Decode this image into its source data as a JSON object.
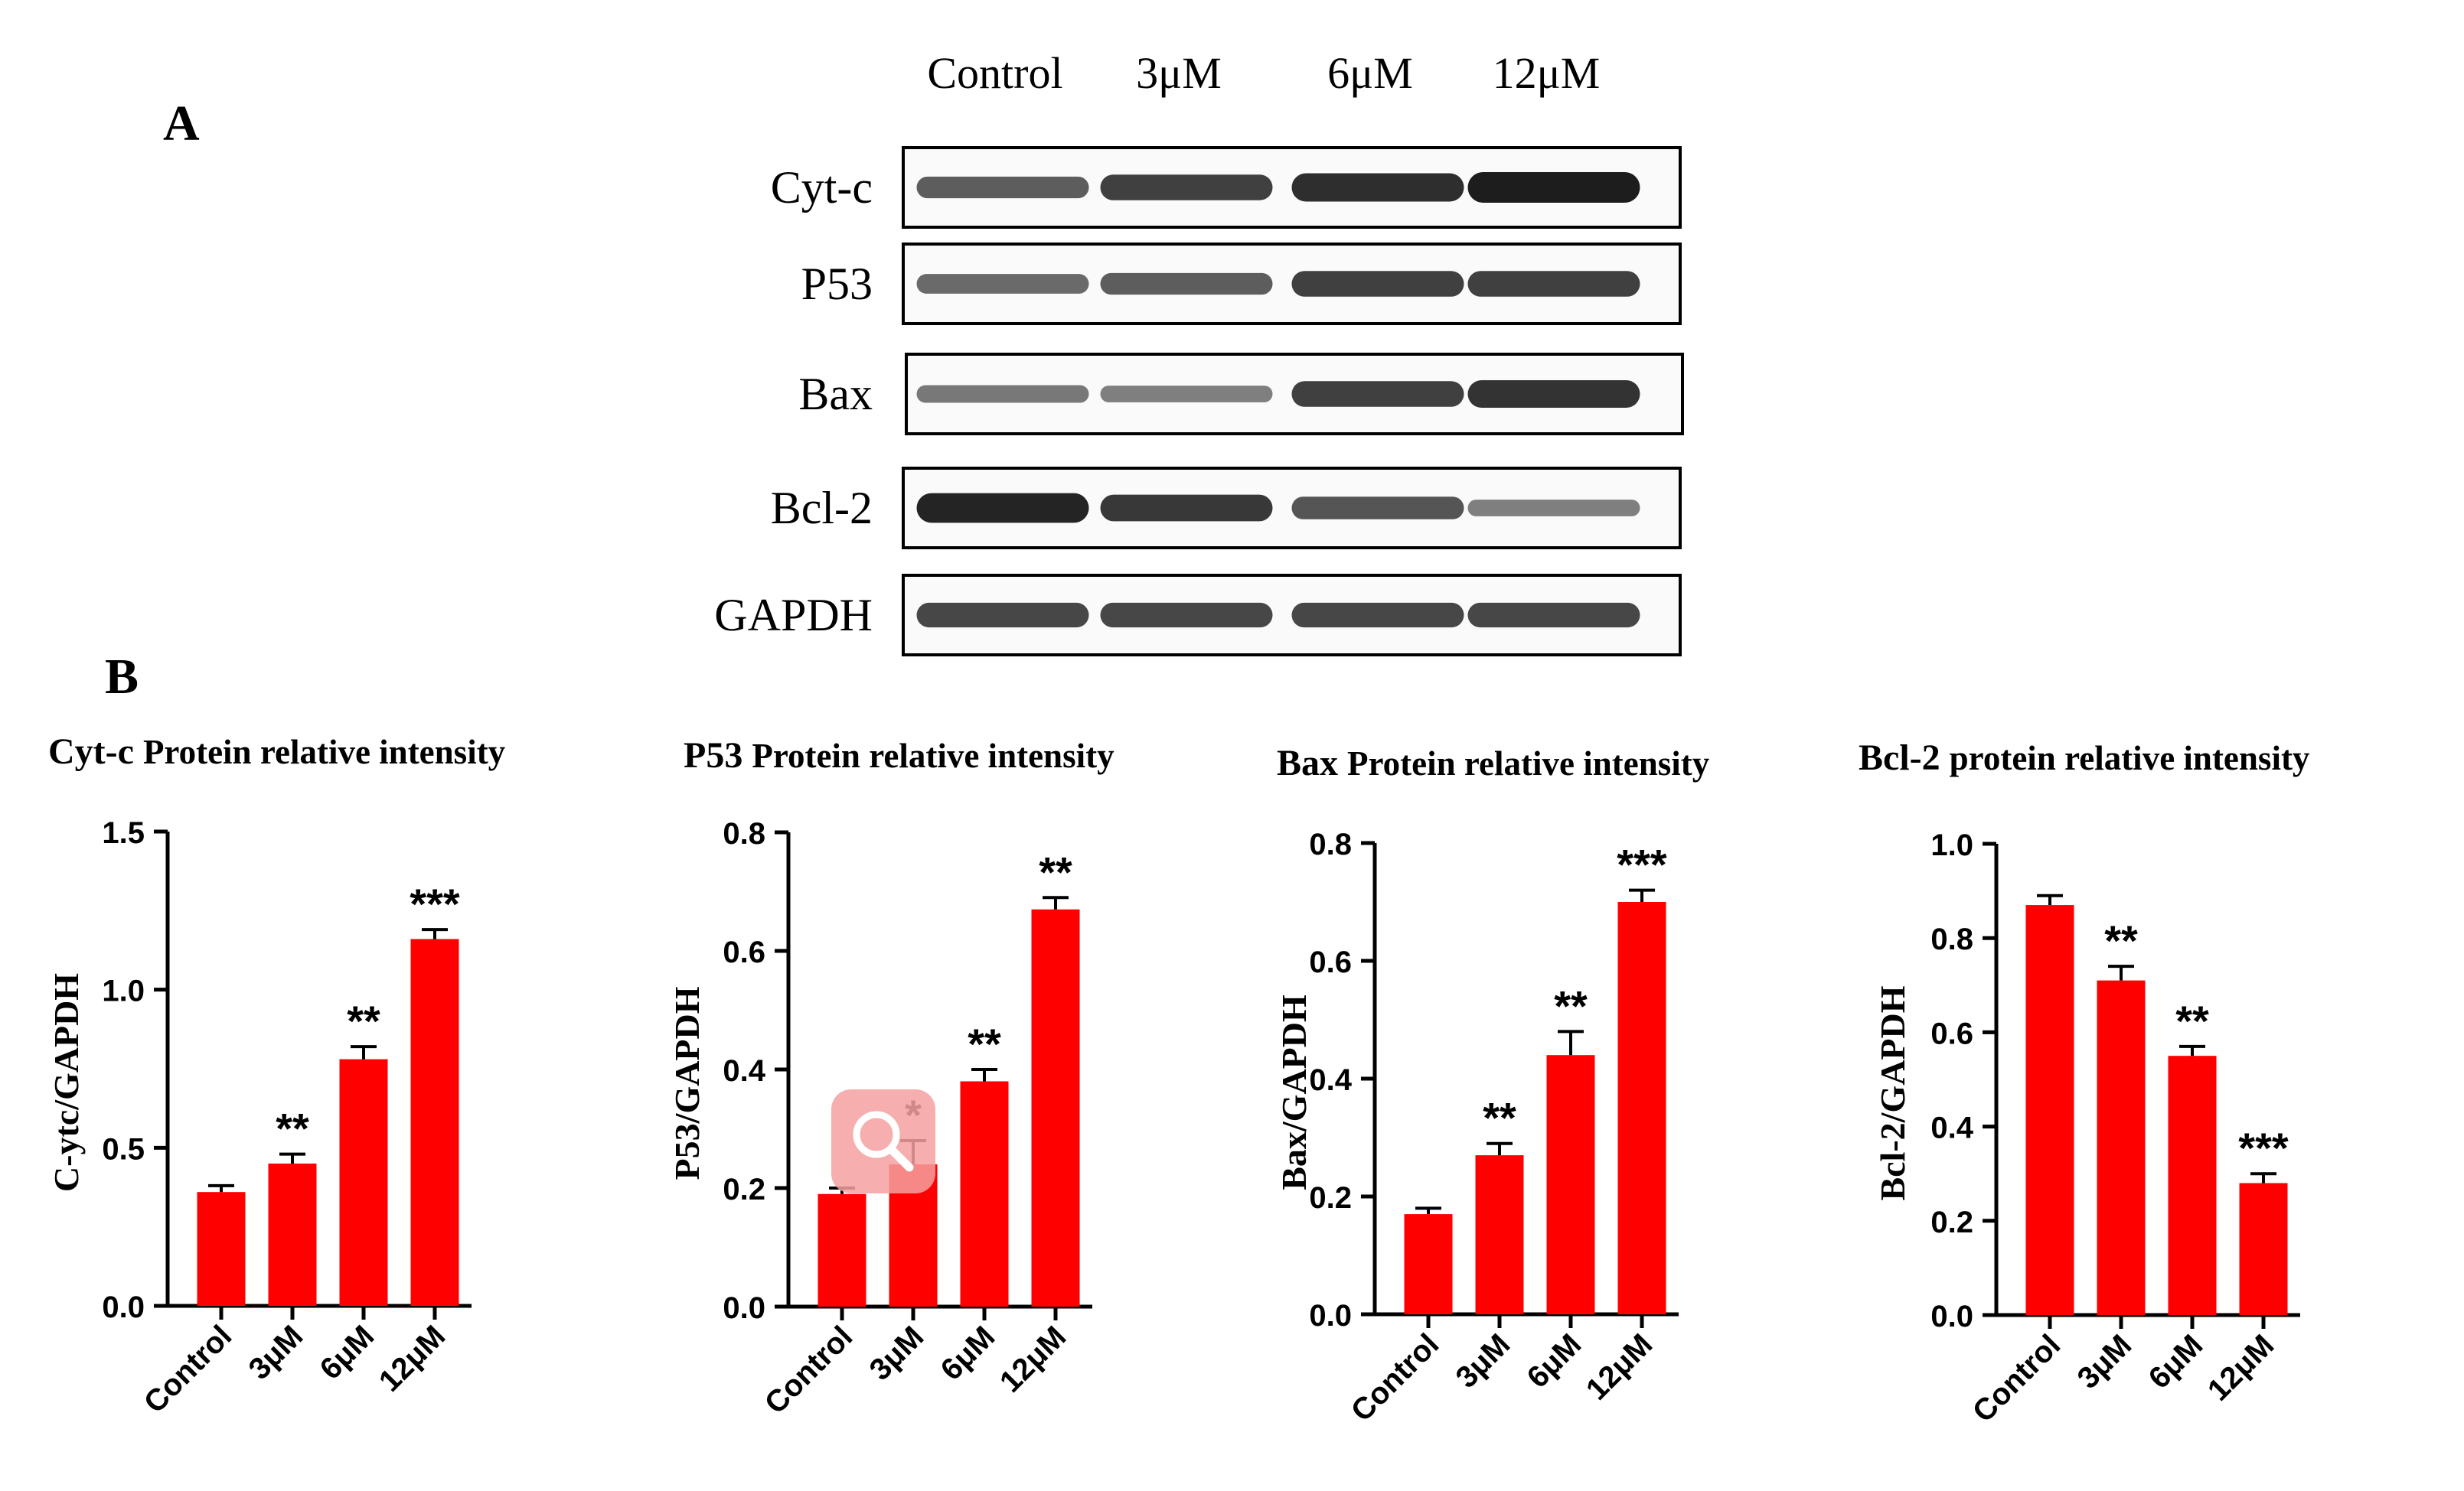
{
  "panel_labels": {
    "a": "A",
    "b": "B"
  },
  "blot": {
    "lanes": [
      "Control",
      "3μM",
      "6μM",
      "12μM"
    ],
    "rows": [
      {
        "label": "Cyt-c",
        "intensity": [
          0.55,
          0.75,
          0.88,
          1.0
        ]
      },
      {
        "label": "P53",
        "intensity": [
          0.45,
          0.55,
          0.75,
          0.75
        ]
      },
      {
        "label": "Bax",
        "intensity": [
          0.35,
          0.3,
          0.75,
          0.85
        ]
      },
      {
        "label": "Bcl-2",
        "intensity": [
          0.95,
          0.8,
          0.6,
          0.3
        ]
      },
      {
        "label": "GAPDH",
        "intensity": [
          0.7,
          0.7,
          0.7,
          0.7
        ]
      }
    ]
  },
  "colors": {
    "bar": "#ff0000",
    "axis": "#000000",
    "band": "#111111"
  },
  "zoom_icon": "magnifier-icon",
  "chart_data": [
    {
      "type": "bar",
      "title_prefix": "Cyt-c",
      "title_rest": "Protein relative intensity",
      "ylabel": "C-ytc/GAPDH",
      "categories": [
        "Control",
        "3μM",
        "6μM",
        "12μM"
      ],
      "values": [
        0.36,
        0.45,
        0.78,
        1.16
      ],
      "errors": [
        0.02,
        0.03,
        0.04,
        0.03
      ],
      "significance": [
        "",
        "**",
        "**",
        "***"
      ],
      "ylim": [
        0,
        1.5
      ],
      "yticks": [
        "0.0",
        "0.5",
        "1.0",
        "1.5"
      ]
    },
    {
      "type": "bar",
      "title_prefix": "P53",
      "title_rest": "Protein relative intensity",
      "ylabel": "P53/GAPDH",
      "categories": [
        "Control",
        "3μM",
        "6μM",
        "12μM"
      ],
      "values": [
        0.19,
        0.24,
        0.38,
        0.67
      ],
      "errors": [
        0.01,
        0.04,
        0.02,
        0.02
      ],
      "significance": [
        "",
        "*",
        "**",
        "**"
      ],
      "ylim": [
        0,
        0.8
      ],
      "yticks": [
        "0.0",
        "0.2",
        "0.4",
        "0.6",
        "0.8"
      ]
    },
    {
      "type": "bar",
      "title_prefix": "Bax",
      "title_rest": "Protein relative intensity",
      "ylabel": "Bax/GAPDH",
      "categories": [
        "Control",
        "3μM",
        "6μM",
        "12μM"
      ],
      "values": [
        0.17,
        0.27,
        0.44,
        0.7
      ],
      "errors": [
        0.01,
        0.02,
        0.04,
        0.02
      ],
      "significance": [
        "",
        "**",
        "**",
        "***"
      ],
      "ylim": [
        0,
        0.8
      ],
      "yticks": [
        "0.0",
        "0.2",
        "0.4",
        "0.6",
        "0.8"
      ]
    },
    {
      "type": "bar",
      "title_prefix": "Bcl-2",
      "title_rest": "protein relative intensity",
      "ylabel": "Bcl-2/GAPDH",
      "categories": [
        "Control",
        "3μM",
        "6μM",
        "12μM"
      ],
      "values": [
        0.87,
        0.71,
        0.55,
        0.28
      ],
      "errors": [
        0.02,
        0.03,
        0.02,
        0.02
      ],
      "significance": [
        "",
        "**",
        "**",
        "***"
      ],
      "ylim": [
        0,
        1.0
      ],
      "yticks": [
        "0.0",
        "0.2",
        "0.4",
        "0.6",
        "0.8",
        "1.0"
      ]
    }
  ]
}
